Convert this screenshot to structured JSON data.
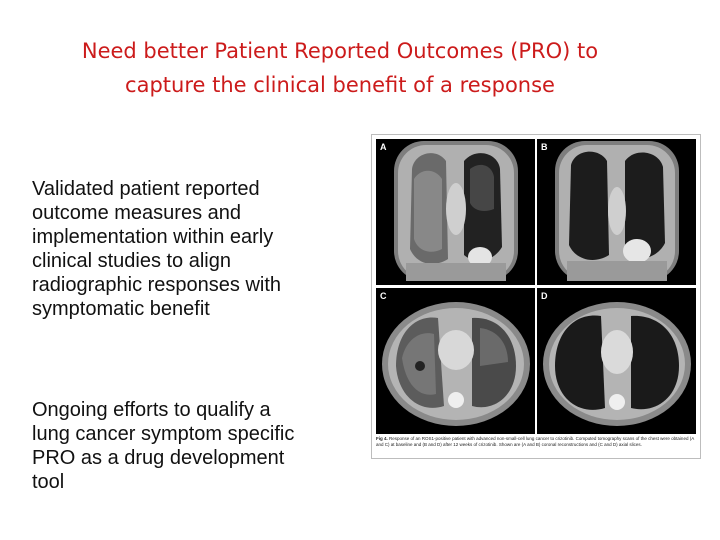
{
  "slide": {
    "title_line1": "Need better Patient Reported Outcomes (PRO) to",
    "title_line2": "capture the clinical benefit of a response",
    "bullet1_lines": [
      "Validated patient reported",
      "outcome measures and",
      "implementation within early",
      "clinical studies to align",
      "radiographic responses with",
      "symptomatic benefit"
    ],
    "bullet2_lines": [
      "Ongoing efforts to qualify a",
      "lung cancer symptom specific",
      "PRO as a drug development",
      "tool"
    ]
  },
  "figure": {
    "panel_labels": [
      "A",
      "B",
      "C",
      "D"
    ],
    "caption_lead": "Fig 4.",
    "caption_text": "Response of an ROS1-positive patient with advanced non-small-cell lung cancer to crizotinib. Computed tomography scans of the chest were obtained (A and C) at baseline and (B and D) after 12 weeks of crizotinib. Shown are (A and B) coronal reconstructions and (C and D) axial slices."
  },
  "colors": {
    "title": "#cc1b1b",
    "body_text": "#111111",
    "scan_background": "#000000"
  }
}
